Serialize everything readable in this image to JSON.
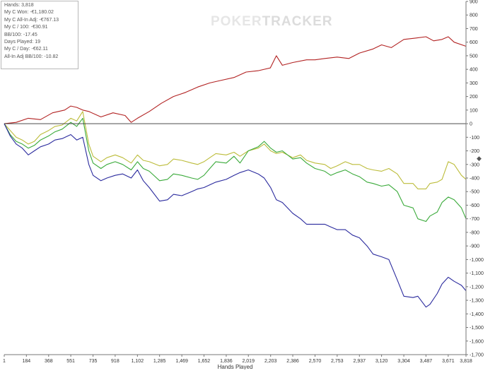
{
  "watermark": {
    "part1": "POKER",
    "part2": "TRACKER"
  },
  "stats": [
    {
      "label": "Hands",
      "value": "3,818"
    },
    {
      "label": "My C Won",
      "value": "-€1,180.02"
    },
    {
      "label": "My C All-In Adj",
      "value": "-€767.13"
    },
    {
      "label": "My C / 100",
      "value": "-€30.91"
    },
    {
      "label": "BB/100",
      "value": "-17.45"
    },
    {
      "label": "Days Played",
      "value": "19"
    },
    {
      "label": "My C / Day",
      "value": "-€62.11"
    },
    {
      "label": "All-In Adj BB/100",
      "value": "-10.82"
    }
  ],
  "chart_data": {
    "type": "line",
    "xlabel": "Hands Played",
    "ylabel": "",
    "xlim": [
      1,
      3818
    ],
    "ylim": [
      -1700,
      900
    ],
    "x_ticks": [
      "1",
      "184",
      "368",
      "551",
      "735",
      "918",
      "1,102",
      "1,285",
      "1,469",
      "1,652",
      "1,836",
      "2,019",
      "2,203",
      "2,386",
      "2,570",
      "2,753",
      "2,937",
      "3,120",
      "3,304",
      "3,487",
      "3,671",
      "3,818"
    ],
    "x_tick_values": [
      1,
      184,
      368,
      551,
      735,
      918,
      1102,
      1285,
      1469,
      1652,
      1836,
      2019,
      2203,
      2386,
      2570,
      2753,
      2937,
      3120,
      3304,
      3487,
      3671,
      3818
    ],
    "y_ticks": [
      "900",
      "800",
      "700",
      "600",
      "500",
      "400",
      "300",
      "200",
      "100",
      "0",
      "-100",
      "-200",
      "-300",
      "-400",
      "-500",
      "-600",
      "-700",
      "-800",
      "-900",
      "-1,000",
      "-1,100",
      "-1,200",
      "-1,300",
      "-1,400",
      "-1,500",
      "-1,600",
      "-1,700"
    ],
    "y_tick_values": [
      900,
      800,
      700,
      600,
      500,
      400,
      300,
      200,
      100,
      0,
      -100,
      -200,
      -300,
      -400,
      -500,
      -600,
      -700,
      -800,
      -900,
      -1000,
      -1100,
      -1200,
      -1300,
      -1400,
      -1500,
      -1600,
      -1700
    ],
    "grid": false,
    "zero_line": true,
    "series": [
      {
        "color": "#b22222",
        "x": [
          1,
          100,
          200,
          300,
          400,
          500,
          551,
          600,
          650,
          700,
          800,
          900,
          1000,
          1050,
          1102,
          1200,
          1300,
          1400,
          1500,
          1600,
          1700,
          1800,
          1900,
          2000,
          2100,
          2200,
          2250,
          2300,
          2386,
          2500,
          2570,
          2650,
          2753,
          2850,
          2937,
          3050,
          3120,
          3200,
          3304,
          3400,
          3487,
          3550,
          3620,
          3671,
          3720,
          3818
        ],
        "y": [
          0,
          10,
          40,
          30,
          80,
          100,
          130,
          120,
          100,
          90,
          50,
          80,
          60,
          10,
          40,
          90,
          150,
          200,
          230,
          270,
          300,
          320,
          340,
          380,
          390,
          410,
          500,
          430,
          450,
          470,
          470,
          480,
          490,
          480,
          520,
          550,
          580,
          560,
          620,
          630,
          640,
          610,
          620,
          640,
          600,
          570
        ]
      },
      {
        "color": "#bcbc3a",
        "x": [
          1,
          50,
          100,
          150,
          200,
          250,
          300,
          368,
          420,
          480,
          551,
          600,
          650,
          700,
          735,
          800,
          850,
          918,
          980,
          1050,
          1102,
          1150,
          1200,
          1285,
          1350,
          1400,
          1469,
          1550,
          1600,
          1652,
          1700,
          1750,
          1836,
          1900,
          1950,
          2019,
          2100,
          2150,
          2203,
          2250,
          2300,
          2386,
          2450,
          2500,
          2570,
          2650,
          2700,
          2753,
          2820,
          2880,
          2937,
          3000,
          3050,
          3120,
          3180,
          3250,
          3304,
          3380,
          3420,
          3487,
          3520,
          3580,
          3620,
          3671,
          3720,
          3780,
          3818
        ],
        "y": [
          0,
          -50,
          -100,
          -120,
          -150,
          -130,
          -80,
          -50,
          -20,
          -10,
          40,
          20,
          90,
          -150,
          -240,
          -280,
          -250,
          -230,
          -250,
          -290,
          -230,
          -270,
          -280,
          -310,
          -300,
          -260,
          -270,
          -290,
          -300,
          -280,
          -250,
          -220,
          -230,
          -210,
          -240,
          -200,
          -180,
          -150,
          -200,
          -220,
          -210,
          -250,
          -230,
          -270,
          -290,
          -300,
          -330,
          -310,
          -280,
          -300,
          -300,
          -330,
          -340,
          -350,
          -330,
          -370,
          -440,
          -440,
          -480,
          -480,
          -440,
          -430,
          -410,
          -280,
          -300,
          -380,
          -410
        ]
      },
      {
        "color": "#3aaa3a",
        "x": [
          1,
          50,
          100,
          150,
          200,
          250,
          300,
          368,
          420,
          480,
          551,
          600,
          650,
          700,
          735,
          800,
          850,
          918,
          980,
          1050,
          1102,
          1150,
          1200,
          1285,
          1350,
          1400,
          1469,
          1550,
          1600,
          1652,
          1700,
          1750,
          1836,
          1900,
          1950,
          2019,
          2100,
          2150,
          2203,
          2250,
          2300,
          2386,
          2450,
          2500,
          2570,
          2650,
          2700,
          2753,
          2820,
          2880,
          2937,
          3000,
          3050,
          3120,
          3180,
          3250,
          3304,
          3380,
          3420,
          3487,
          3520,
          3580,
          3620,
          3671,
          3720,
          3780,
          3818
        ],
        "y": [
          0,
          -80,
          -130,
          -150,
          -180,
          -160,
          -120,
          -90,
          -60,
          -40,
          10,
          -20,
          40,
          -200,
          -290,
          -330,
          -300,
          -280,
          -300,
          -340,
          -280,
          -330,
          -350,
          -420,
          -410,
          -370,
          -380,
          -400,
          -410,
          -380,
          -330,
          -280,
          -290,
          -240,
          -290,
          -200,
          -170,
          -130,
          -180,
          -210,
          -200,
          -260,
          -250,
          -290,
          -330,
          -350,
          -380,
          -360,
          -340,
          -370,
          -390,
          -430,
          -440,
          -460,
          -450,
          -500,
          -600,
          -620,
          -700,
          -720,
          -680,
          -650,
          -580,
          -540,
          -560,
          -620,
          -700
        ]
      },
      {
        "color": "#2b2b9e",
        "x": [
          1,
          50,
          100,
          150,
          200,
          250,
          300,
          368,
          420,
          480,
          551,
          600,
          650,
          700,
          735,
          800,
          850,
          918,
          980,
          1050,
          1102,
          1150,
          1200,
          1285,
          1350,
          1400,
          1469,
          1550,
          1600,
          1652,
          1700,
          1750,
          1836,
          1900,
          1950,
          2019,
          2100,
          2150,
          2203,
          2250,
          2300,
          2386,
          2450,
          2500,
          2570,
          2650,
          2700,
          2753,
          2820,
          2880,
          2937,
          3000,
          3050,
          3120,
          3180,
          3250,
          3304,
          3380,
          3420,
          3487,
          3520,
          3580,
          3620,
          3671,
          3720,
          3780,
          3818
        ],
        "y": [
          0,
          -90,
          -150,
          -180,
          -230,
          -200,
          -170,
          -150,
          -120,
          -110,
          -80,
          -120,
          -100,
          -300,
          -380,
          -420,
          -400,
          -380,
          -370,
          -400,
          -340,
          -420,
          -470,
          -570,
          -560,
          -520,
          -530,
          -500,
          -480,
          -470,
          -450,
          -430,
          -410,
          -380,
          -360,
          -340,
          -370,
          -400,
          -470,
          -560,
          -580,
          -660,
          -700,
          -740,
          -740,
          -740,
          -760,
          -780,
          -780,
          -820,
          -840,
          -900,
          -960,
          -980,
          -1000,
          -1150,
          -1270,
          -1280,
          -1270,
          -1350,
          -1330,
          -1250,
          -1180,
          -1130,
          -1160,
          -1190,
          -1230
        ]
      }
    ]
  }
}
